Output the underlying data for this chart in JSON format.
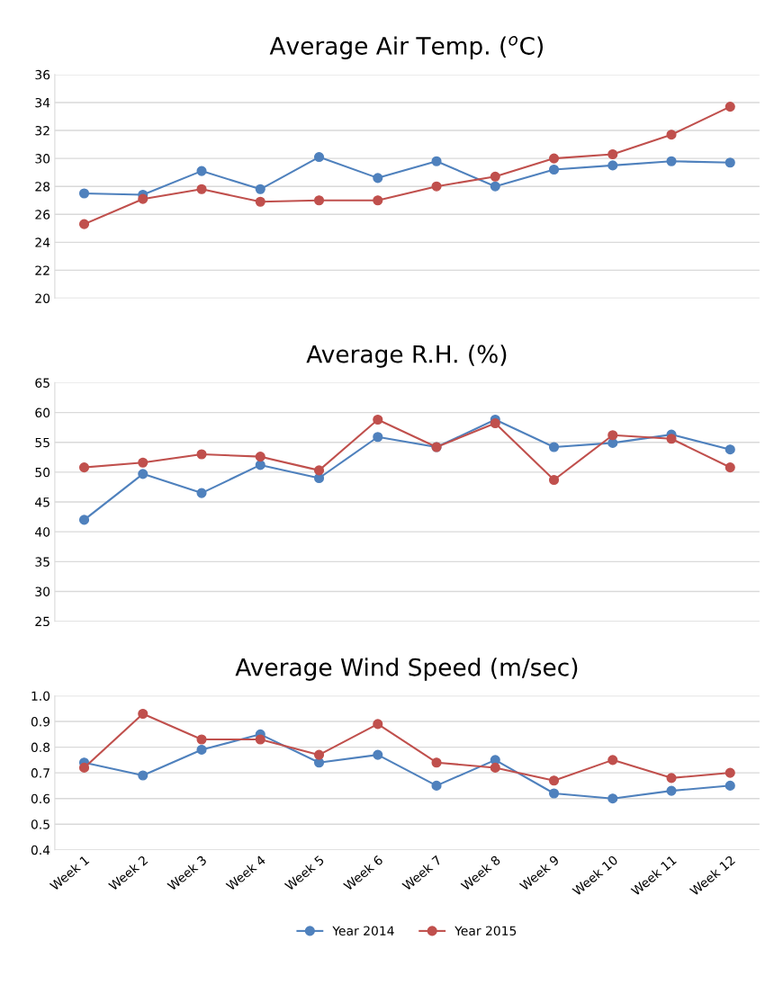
{
  "chart_data": [
    {
      "type": "line",
      "title": "Average Air Temp. ($^{o}$C)",
      "categories": [
        null,
        null,
        null,
        null,
        null,
        null,
        null,
        null,
        null,
        null,
        null,
        null
      ],
      "series": [
        {
          "color": "#4f81bd",
          "values": [
            27.5,
            27.4,
            29.1,
            27.8,
            30.1,
            28.6,
            29.8,
            28.0,
            29.2,
            29.5,
            29.8,
            29.7
          ]
        },
        {
          "color": "#c0504d",
          "values": [
            25.3,
            27.1,
            27.8,
            26.9,
            27.0,
            27.0,
            28.0,
            28.7,
            30.0,
            30.3,
            31.7,
            33.7
          ]
        }
      ],
      "ylim": [
        20,
        36
      ],
      "yticks": [
        20,
        22,
        24,
        26,
        28,
        30,
        32,
        34,
        36
      ],
      "grid": "y",
      "marker": "circle",
      "line_style": "solid",
      "tick_labels": "y"
    },
    {
      "type": "line",
      "title": "Average R.H. (%)",
      "categories": [
        null,
        null,
        null,
        null,
        null,
        null,
        null,
        null,
        null,
        null,
        null,
        null
      ],
      "series": [
        {
          "color": "#4f81bd",
          "values": [
            42,
            49.7,
            46.5,
            51.2,
            49,
            55.9,
            54.2,
            58.8,
            54.2,
            54.9,
            56.3,
            53.8
          ]
        },
        {
          "color": "#c0504d",
          "values": [
            50.8,
            51.6,
            53,
            52.6,
            50.3,
            58.8,
            54.2,
            58.2,
            48.7,
            56.2,
            55.6,
            50.8
          ]
        }
      ],
      "ylim": [
        25,
        65
      ],
      "yticks": [
        25,
        30,
        35,
        40,
        45,
        50,
        55,
        60,
        65
      ],
      "grid": "y",
      "marker": "circle",
      "line_style": "solid",
      "tick_labels": "y"
    },
    {
      "type": "line",
      "title": "Average Wind Speed (m/sec)",
      "categories": [
        "Week 1",
        "Week 2",
        "Week 3",
        "Week 4",
        "Week 5",
        "Week 6",
        "Week 7",
        "Week 8",
        "Week 9",
        "Week 10",
        "Week 11",
        "Week 12"
      ],
      "series": [
        {
          "name": "Year 2014",
          "color": "#4f81bd",
          "values": [
            0.74,
            0.69,
            0.79,
            0.85,
            0.74,
            0.77,
            0.65,
            0.75,
            0.62,
            0.6,
            0.63,
            0.65
          ]
        },
        {
          "name": "Year 2015",
          "color": "#c0504d",
          "values": [
            0.72,
            0.93,
            0.83,
            0.83,
            0.77,
            0.89,
            0.74,
            0.72,
            0.67,
            0.75,
            0.68,
            0.7
          ]
        }
      ],
      "ylim": [
        0.4,
        1.0
      ],
      "yticks": [
        {
          "value": 0.4,
          "label": "0.4"
        },
        {
          "value": 0.5,
          "label": "0.5"
        },
        {
          "value": 0.6,
          "label": "0.6"
        },
        {
          "value": 0.7,
          "label": "0.7"
        },
        {
          "value": 0.8,
          "label": "0.8"
        },
        {
          "value": 0.9,
          "label": "0.9"
        },
        {
          "value": 1.0,
          "label": "1.0"
        }
      ],
      "grid": "y",
      "marker": "circle",
      "line_style": "solid",
      "legend": "bottom"
    }
  ]
}
